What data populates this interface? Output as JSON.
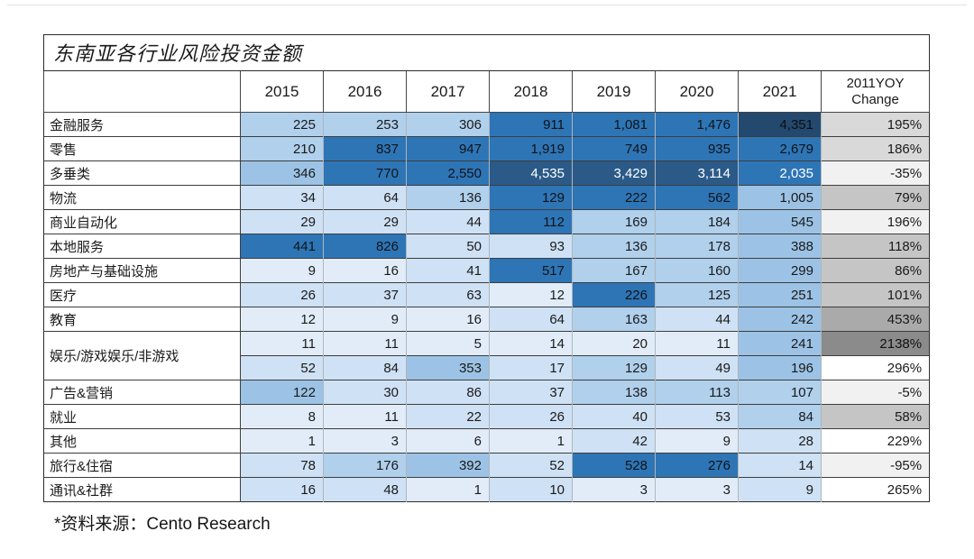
{
  "title": "东南亚各行业风险投资金额",
  "source_note": "*资料来源：Cento Research",
  "header": {
    "corner_label": "",
    "year_columns": [
      "2015",
      "2016",
      "2017",
      "2018",
      "2019",
      "2020",
      "2021"
    ],
    "yoy_column": "2011YOY\nChange"
  },
  "palette": {
    "b1": {
      "bg": "#e1ecf8",
      "fg": "#1a1a1a"
    },
    "b2": {
      "bg": "#cfe1f4",
      "fg": "#1a1a1a"
    },
    "b3": {
      "bg": "#b0d0ec",
      "fg": "#1a1a1a"
    },
    "b4": {
      "bg": "#9cc3e5",
      "fg": "#1a1a1a"
    },
    "b5": {
      "bg": "#2e75b6",
      "fg": "#101418"
    },
    "b5w": {
      "bg": "#2e75b6",
      "fg": "#ffffff"
    },
    "b6": {
      "bg": "#24496e",
      "fg": "#0b0f14"
    },
    "b6w": {
      "bg": "#2b5a88",
      "fg": "#ffffff"
    },
    "g0": {
      "bg": "#ffffff",
      "fg": "#1a1a1a"
    },
    "g1": {
      "bg": "#f1f1f1",
      "fg": "#1a1a1a"
    },
    "g2": {
      "bg": "#d9d9d9",
      "fg": "#1a1a1a"
    },
    "g3": {
      "bg": "#c5c5c5",
      "fg": "#1a1a1a"
    },
    "g4": {
      "bg": "#aaaaaa",
      "fg": "#1a1a1a"
    },
    "g5": {
      "bg": "#8b8b8b",
      "fg": "#111111"
    }
  },
  "chart_data": {
    "type": "table",
    "title": "东南亚各行业风险投资金额",
    "columns": [
      "2015",
      "2016",
      "2017",
      "2018",
      "2019",
      "2020",
      "2021",
      "2011YOY Change"
    ],
    "rows": [
      {
        "industry": "金融服务",
        "values": [
          225,
          253,
          306,
          911,
          1081,
          1476,
          4351
        ],
        "shades": [
          "b3",
          "b3",
          "b3",
          "b5",
          "b5",
          "b5",
          "b6"
        ],
        "yoy_change": "195%",
        "yoy_shade": "g2"
      },
      {
        "industry": "零售",
        "values": [
          210,
          837,
          947,
          1919,
          749,
          935,
          2679
        ],
        "shades": [
          "b3",
          "b5",
          "b5",
          "b5",
          "b5",
          "b5",
          "b5"
        ],
        "yoy_change": "186%",
        "yoy_shade": "g2"
      },
      {
        "industry": "多垂类",
        "values": [
          346,
          770,
          2550,
          4535,
          3429,
          3114,
          2035
        ],
        "shades": [
          "b4",
          "b5",
          "b5",
          "b6w",
          "b6w",
          "b6w",
          "b5w"
        ],
        "yoy_change": "-35%",
        "yoy_shade": "g1"
      },
      {
        "industry": "物流",
        "values": [
          34,
          64,
          136,
          129,
          222,
          562,
          1005
        ],
        "shades": [
          "b2",
          "b2",
          "b3",
          "b5",
          "b5",
          "b5",
          "b4"
        ],
        "yoy_change": "79%",
        "yoy_shade": "g3"
      },
      {
        "industry": "商业自动化",
        "values": [
          29,
          29,
          44,
          112,
          169,
          184,
          545
        ],
        "shades": [
          "b2",
          "b2",
          "b2",
          "b5",
          "b3",
          "b3",
          "b4"
        ],
        "yoy_change": "196%",
        "yoy_shade": "g1"
      },
      {
        "industry": "本地服务",
        "values": [
          441,
          826,
          50,
          93,
          136,
          178,
          388
        ],
        "shades": [
          "b5",
          "b5",
          "b2",
          "b2",
          "b3",
          "b3",
          "b4"
        ],
        "yoy_change": "118%",
        "yoy_shade": "g3"
      },
      {
        "industry": "房地产与基础设施",
        "values": [
          9,
          16,
          41,
          517,
          167,
          160,
          299
        ],
        "shades": [
          "b1",
          "b1",
          "b2",
          "b5",
          "b3",
          "b3",
          "b4"
        ],
        "yoy_change": "86%",
        "yoy_shade": "g3"
      },
      {
        "industry": "医疗",
        "values": [
          26,
          37,
          63,
          12,
          226,
          125,
          251
        ],
        "shades": [
          "b2",
          "b2",
          "b2",
          "b1",
          "b5",
          "b3",
          "b4"
        ],
        "yoy_change": "101%",
        "yoy_shade": "g3"
      },
      {
        "industry": "教育",
        "values": [
          12,
          9,
          16,
          64,
          163,
          44,
          242
        ],
        "shades": [
          "b1",
          "b1",
          "b1",
          "b2",
          "b3",
          "b2",
          "b4"
        ],
        "yoy_change": "453%",
        "yoy_shade": "g4"
      },
      {
        "industry": "娱乐/游戏娱乐/非游戏",
        "label_rowspan": 2,
        "values": [
          11,
          11,
          5,
          14,
          20,
          11,
          241
        ],
        "shades": [
          "b1",
          "b1",
          "b1",
          "b1",
          "b1",
          "b1",
          "b4"
        ],
        "yoy_change": "2138%",
        "yoy_shade": "g5"
      },
      {
        "industry": null,
        "values": [
          52,
          84,
          353,
          17,
          129,
          49,
          196
        ],
        "shades": [
          "b2",
          "b2",
          "b4",
          "b2",
          "b3",
          "b2",
          "b4"
        ],
        "yoy_change": "296%",
        "yoy_shade": "g0"
      },
      {
        "industry": "广告&营销",
        "values": [
          122,
          30,
          86,
          37,
          138,
          113,
          107
        ],
        "shades": [
          "b4",
          "b2",
          "b2",
          "b2",
          "b3",
          "b3",
          "b3"
        ],
        "yoy_change": "-5%",
        "yoy_shade": "g1"
      },
      {
        "industry": "就业",
        "values": [
          8,
          11,
          22,
          26,
          40,
          53,
          84
        ],
        "shades": [
          "b1",
          "b1",
          "b2",
          "b2",
          "b2",
          "b2",
          "b3"
        ],
        "yoy_change": "58%",
        "yoy_shade": "g3"
      },
      {
        "industry": "其他",
        "values": [
          1,
          3,
          6,
          1,
          42,
          9,
          28
        ],
        "shades": [
          "b1",
          "b1",
          "b1",
          "b1",
          "b2",
          "b1",
          "b2"
        ],
        "yoy_change": "229%",
        "yoy_shade": "g0"
      },
      {
        "industry": "旅行&住宿",
        "values": [
          78,
          176,
          392,
          52,
          528,
          276,
          14
        ],
        "shades": [
          "b2",
          "b3",
          "b4",
          "b2",
          "b5",
          "b5",
          "b2"
        ],
        "yoy_change": "-95%",
        "yoy_shade": "g1"
      },
      {
        "industry": "通讯&社群",
        "values": [
          16,
          48,
          1,
          10,
          3,
          3,
          9
        ],
        "shades": [
          "b2",
          "b2",
          "b1",
          "b2",
          "b1",
          "b1",
          "b2"
        ],
        "yoy_change": "265%",
        "yoy_shade": "g0"
      }
    ],
    "source": "*资料来源：Cento Research"
  }
}
